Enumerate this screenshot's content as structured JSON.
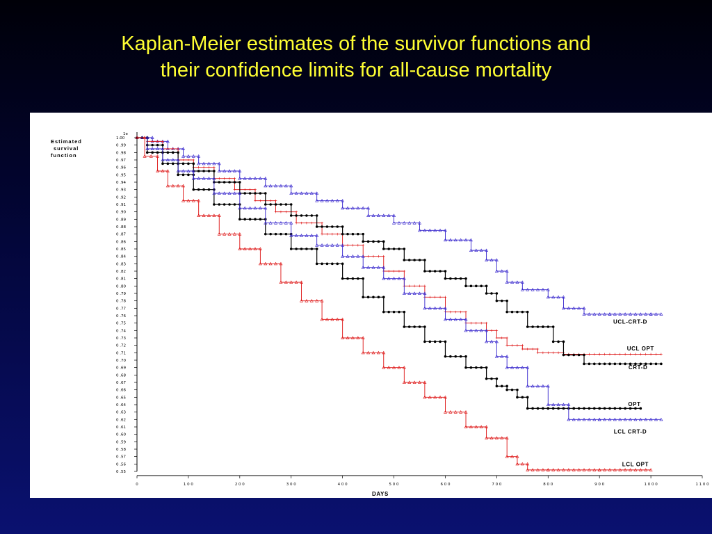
{
  "slide": {
    "title_line1": "Kaplan-Meier estimates of the survivor functions and",
    "title_line2": "their confidence limits for all-cause mortality"
  },
  "chart_data": {
    "type": "line",
    "step": true,
    "ylabel_lines": [
      "Estimated",
      "survival",
      "function"
    ],
    "ytop_label": "1e",
    "xlabel": "DAYS",
    "xlim": [
      0,
      1100
    ],
    "ylim": [
      0.55,
      1.0
    ],
    "xticks": [
      0,
      100,
      200,
      300,
      400,
      500,
      600,
      700,
      800,
      900,
      1000,
      1100
    ],
    "yticks": [
      0.55,
      0.56,
      0.57,
      0.58,
      0.59,
      0.6,
      0.61,
      0.62,
      0.63,
      0.64,
      0.65,
      0.66,
      0.67,
      0.68,
      0.69,
      0.7,
      0.71,
      0.72,
      0.73,
      0.74,
      0.75,
      0.76,
      0.77,
      0.78,
      0.79,
      0.8,
      0.81,
      0.82,
      0.83,
      0.84,
      0.85,
      0.86,
      0.87,
      0.88,
      0.89,
      0.9,
      0.91,
      0.92,
      0.93,
      0.94,
      0.95,
      0.96,
      0.97,
      0.98,
      0.99,
      1.0
    ],
    "series": [
      {
        "name": "UCL-CRT-D",
        "color": "#3322cc",
        "marker": "triangle",
        "x": [
          0,
          30,
          60,
          90,
          120,
          160,
          200,
          250,
          300,
          350,
          400,
          450,
          500,
          550,
          600,
          650,
          680,
          700,
          720,
          750,
          800,
          830,
          870,
          920,
          1000,
          1020
        ],
        "y": [
          1.0,
          0.995,
          0.985,
          0.975,
          0.965,
          0.955,
          0.945,
          0.935,
          0.925,
          0.915,
          0.905,
          0.895,
          0.885,
          0.875,
          0.862,
          0.848,
          0.835,
          0.82,
          0.805,
          0.795,
          0.785,
          0.77,
          0.762,
          0.762,
          0.762,
          0.762
        ]
      },
      {
        "name": "UCL OPT",
        "color": "#dd1111",
        "marker": "cross",
        "x": [
          0,
          20,
          50,
          80,
          110,
          150,
          190,
          230,
          270,
          310,
          360,
          400,
          440,
          480,
          520,
          560,
          600,
          640,
          680,
          700,
          720,
          750,
          780,
          830,
          900,
          1020
        ],
        "y": [
          1.0,
          0.995,
          0.985,
          0.97,
          0.96,
          0.945,
          0.93,
          0.915,
          0.9,
          0.885,
          0.87,
          0.855,
          0.84,
          0.82,
          0.8,
          0.785,
          0.765,
          0.75,
          0.74,
          0.73,
          0.72,
          0.715,
          0.71,
          0.708,
          0.708,
          0.708
        ]
      },
      {
        "name": "CRT-D",
        "color": "#000000",
        "marker": "dot",
        "x": [
          0,
          20,
          50,
          80,
          110,
          150,
          200,
          250,
          300,
          350,
          400,
          440,
          480,
          520,
          560,
          600,
          640,
          680,
          700,
          720,
          760,
          790,
          810,
          830,
          870,
          920,
          1020
        ],
        "y": [
          1.0,
          0.99,
          0.98,
          0.965,
          0.955,
          0.94,
          0.925,
          0.91,
          0.895,
          0.88,
          0.87,
          0.86,
          0.85,
          0.835,
          0.82,
          0.81,
          0.8,
          0.79,
          0.78,
          0.765,
          0.745,
          0.745,
          0.725,
          0.707,
          0.695,
          0.695,
          0.695
        ]
      },
      {
        "name": "OPT",
        "color": "#000000",
        "marker": "dot",
        "x": [
          0,
          20,
          50,
          80,
          110,
          150,
          200,
          250,
          300,
          350,
          400,
          440,
          480,
          520,
          560,
          600,
          640,
          680,
          700,
          720,
          740,
          760,
          800,
          850,
          900,
          980
        ],
        "y": [
          1.0,
          0.98,
          0.965,
          0.95,
          0.93,
          0.91,
          0.89,
          0.87,
          0.85,
          0.83,
          0.81,
          0.785,
          0.765,
          0.745,
          0.725,
          0.705,
          0.69,
          0.675,
          0.665,
          0.66,
          0.65,
          0.635,
          0.635,
          0.635,
          0.635,
          0.635
        ]
      },
      {
        "name": "LCL CRT-D",
        "color": "#3322cc",
        "marker": "triangle",
        "x": [
          0,
          20,
          50,
          80,
          110,
          150,
          200,
          250,
          300,
          350,
          400,
          440,
          480,
          520,
          560,
          600,
          640,
          680,
          700,
          720,
          760,
          800,
          840,
          900,
          1020
        ],
        "y": [
          1.0,
          0.985,
          0.97,
          0.955,
          0.945,
          0.925,
          0.905,
          0.885,
          0.868,
          0.855,
          0.84,
          0.825,
          0.81,
          0.79,
          0.77,
          0.755,
          0.74,
          0.725,
          0.705,
          0.69,
          0.665,
          0.64,
          0.62,
          0.62,
          0.62
        ]
      },
      {
        "name": "LCL OPT",
        "color": "#dd1111",
        "marker": "triangle",
        "x": [
          0,
          15,
          40,
          60,
          90,
          120,
          160,
          200,
          240,
          280,
          320,
          360,
          400,
          440,
          480,
          520,
          560,
          600,
          640,
          680,
          720,
          740,
          760,
          800,
          900,
          1000
        ],
        "y": [
          1.0,
          0.975,
          0.955,
          0.935,
          0.915,
          0.895,
          0.87,
          0.85,
          0.83,
          0.805,
          0.78,
          0.755,
          0.73,
          0.71,
          0.69,
          0.67,
          0.65,
          0.63,
          0.61,
          0.595,
          0.57,
          0.56,
          0.552,
          0.552,
          0.552,
          0.552
        ]
      }
    ],
    "series_labels": [
      {
        "text": "UCL-CRT-D",
        "x": 960,
        "y": 0.749
      },
      {
        "text": "UCL OPT",
        "x": 980,
        "y": 0.713
      },
      {
        "text": "CRT-D",
        "x": 975,
        "y": 0.688
      },
      {
        "text": "OPT",
        "x": 968,
        "y": 0.638
      },
      {
        "text": "LCL CRT-D",
        "x": 960,
        "y": 0.601
      },
      {
        "text": "LCL OPT",
        "x": 970,
        "y": 0.557
      }
    ]
  }
}
